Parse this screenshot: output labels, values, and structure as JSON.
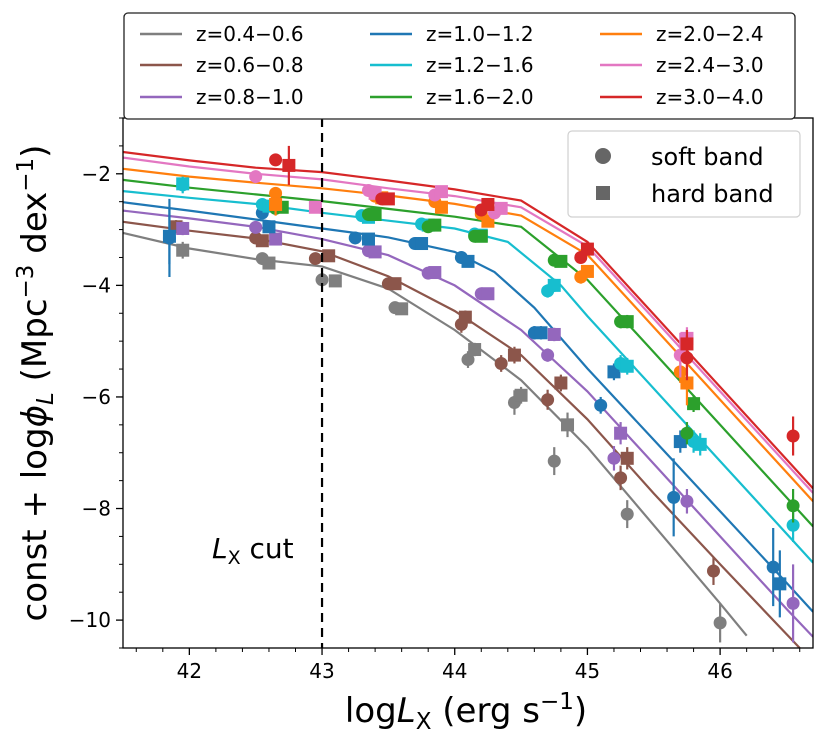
{
  "chart_data": {
    "type": "line+scatter",
    "xlabel_main": "log",
    "xlabel_sym": "L",
    "xlabel_sub": "X",
    "xlabel_units_pre": " (erg s",
    "xlabel_units_exp": "−1",
    "xlabel_units_post": ")",
    "ylabel_pre": "const + log",
    "ylabel_sym": "ϕ",
    "ylabel_sub": "L",
    "ylabel_units_pre": " (Mpc",
    "ylabel_units_exp1": "−3",
    "ylabel_units_mid": " dex",
    "ylabel_units_exp2": "−1",
    "ylabel_units_post": ")",
    "xlim": [
      41.5,
      46.7
    ],
    "ylim": [
      -10.5,
      -1.0
    ],
    "xticks": [
      42,
      43,
      44,
      45,
      46
    ],
    "xtick_labels": [
      "42",
      "43",
      "44",
      "45",
      "46"
    ],
    "yticks": [
      -10,
      -8,
      -6,
      -4,
      -2
    ],
    "ytick_labels": [
      "−10",
      "−8",
      "−6",
      "−4",
      "−2"
    ],
    "cut": {
      "x": 43,
      "label_sym": "L",
      "label_sub": "X",
      "label_text": " cut"
    },
    "legend_series_placement": "top, above axes",
    "legend_markers_placement": "top-right",
    "markers_legend": [
      {
        "label": "soft band",
        "marker": "circle"
      },
      {
        "label": "hard band",
        "marker": "square"
      }
    ],
    "series": [
      {
        "name": "z=0.4−0.6",
        "color": "#7f7f7f",
        "curve": [
          [
            41.5,
            -3.06
          ],
          [
            42.0,
            -3.34
          ],
          [
            42.5,
            -3.53
          ],
          [
            43.0,
            -3.66
          ],
          [
            43.5,
            -4.06
          ],
          [
            44.0,
            -4.8
          ],
          [
            44.5,
            -5.7
          ],
          [
            45.0,
            -6.9
          ],
          [
            45.5,
            -8.3
          ],
          [
            46.0,
            -9.7
          ],
          [
            46.2,
            -10.28
          ]
        ],
        "soft": [
          [
            42.55,
            -3.52,
            0.1
          ],
          [
            43.0,
            -3.9,
            0.1
          ],
          [
            43.55,
            -4.4,
            0.1
          ],
          [
            44.1,
            -5.33,
            0.15
          ],
          [
            44.45,
            -6.1,
            0.22
          ],
          [
            44.75,
            -7.15,
            0.25
          ],
          [
            45.3,
            -8.1,
            0.25
          ],
          [
            46.0,
            -10.05,
            0.35
          ]
        ],
        "hard": [
          [
            41.95,
            -3.37,
            0.15
          ],
          [
            42.6,
            -3.6,
            0.1
          ],
          [
            43.1,
            -3.92,
            0.1
          ],
          [
            43.6,
            -4.42,
            0.1
          ],
          [
            44.15,
            -5.15,
            0.12
          ],
          [
            44.5,
            -5.97,
            0.15
          ],
          [
            44.85,
            -6.5,
            0.22
          ]
        ]
      },
      {
        "name": "z=0.6−0.8",
        "color": "#8c564b",
        "curve": [
          [
            41.5,
            -2.86
          ],
          [
            42.0,
            -3.02
          ],
          [
            42.5,
            -3.16
          ],
          [
            43.0,
            -3.39
          ],
          [
            43.5,
            -3.84
          ],
          [
            44.0,
            -4.46
          ],
          [
            44.5,
            -5.25
          ],
          [
            45.0,
            -6.4
          ],
          [
            45.5,
            -7.73
          ],
          [
            46.0,
            -9.0
          ],
          [
            46.5,
            -10.25
          ],
          [
            46.6,
            -10.5
          ]
        ],
        "soft": [
          [
            42.5,
            -3.15,
            0.1
          ],
          [
            42.95,
            -3.52,
            0.1
          ],
          [
            43.5,
            -3.97,
            0.1
          ],
          [
            44.05,
            -4.7,
            0.15
          ],
          [
            44.35,
            -5.4,
            0.15
          ],
          [
            44.7,
            -6.05,
            0.18
          ],
          [
            45.25,
            -7.45,
            0.22
          ],
          [
            45.95,
            -9.12,
            0.25
          ]
        ],
        "hard": [
          [
            41.9,
            -2.95,
            0.12
          ],
          [
            42.55,
            -3.2,
            0.1
          ],
          [
            43.05,
            -3.47,
            0.1
          ],
          [
            43.55,
            -3.97,
            0.1
          ],
          [
            44.08,
            -4.57,
            0.12
          ],
          [
            44.45,
            -5.25,
            0.15
          ],
          [
            44.8,
            -5.75,
            0.15
          ],
          [
            45.3,
            -7.1,
            0.2
          ]
        ]
      },
      {
        "name": "z=0.8−1.0",
        "color": "#9467bd",
        "curve": [
          [
            41.5,
            -2.66
          ],
          [
            42.0,
            -2.8
          ],
          [
            42.5,
            -2.95
          ],
          [
            43.0,
            -3.17
          ],
          [
            43.5,
            -3.46
          ],
          [
            44.0,
            -4.0
          ],
          [
            44.5,
            -4.8
          ],
          [
            45.0,
            -5.9
          ],
          [
            45.5,
            -7.2
          ],
          [
            46.0,
            -8.5
          ],
          [
            46.5,
            -9.8
          ],
          [
            46.7,
            -10.3
          ]
        ],
        "soft": [
          [
            42.5,
            -2.96,
            0.1
          ],
          [
            43.35,
            -3.38,
            0.1
          ],
          [
            43.8,
            -3.78,
            0.1
          ],
          [
            44.2,
            -4.15,
            0.1
          ],
          [
            44.7,
            -5.25,
            0.12
          ],
          [
            45.2,
            -7.1,
            0.22
          ],
          [
            45.75,
            -7.87,
            0.22
          ],
          [
            46.55,
            -9.7,
            0.7
          ]
        ],
        "hard": [
          [
            41.95,
            -2.98,
            0.12
          ],
          [
            42.65,
            -3.17,
            0.1
          ],
          [
            43.4,
            -3.4,
            0.1
          ],
          [
            43.85,
            -3.77,
            0.1
          ],
          [
            44.25,
            -4.15,
            0.1
          ],
          [
            44.75,
            -4.88,
            0.12
          ],
          [
            45.25,
            -6.65,
            0.2
          ]
        ]
      },
      {
        "name": "z=1.0−1.2",
        "color": "#1f77b4",
        "curve": [
          [
            41.5,
            -2.51
          ],
          [
            42.0,
            -2.66
          ],
          [
            42.5,
            -2.82
          ],
          [
            43.0,
            -2.98
          ],
          [
            43.5,
            -3.14
          ],
          [
            44.0,
            -3.4
          ],
          [
            44.3,
            -3.76
          ],
          [
            44.6,
            -4.4
          ],
          [
            45.0,
            -5.49
          ],
          [
            45.5,
            -6.77
          ],
          [
            46.0,
            -8.05
          ],
          [
            46.5,
            -9.33
          ],
          [
            46.7,
            -9.85
          ]
        ],
        "soft": [
          [
            41.85,
            -3.15,
            0.7
          ],
          [
            42.55,
            -2.7,
            0.1
          ],
          [
            43.25,
            -3.15,
            0.1
          ],
          [
            43.7,
            -3.25,
            0.1
          ],
          [
            44.05,
            -3.5,
            0.1
          ],
          [
            44.6,
            -4.85,
            0.12
          ],
          [
            45.1,
            -6.15,
            0.15
          ],
          [
            45.65,
            -7.8,
            0.7
          ],
          [
            46.4,
            -9.05,
            0.7
          ]
        ],
        "hard": [
          [
            41.85,
            -3.12,
            0.5
          ],
          [
            42.6,
            -2.95,
            0.1
          ],
          [
            43.35,
            -3.17,
            0.1
          ],
          [
            43.75,
            -3.25,
            0.1
          ],
          [
            44.1,
            -3.57,
            0.1
          ],
          [
            44.65,
            -4.85,
            0.12
          ],
          [
            45.2,
            -5.55,
            0.15
          ],
          [
            45.7,
            -6.8,
            0.2
          ],
          [
            46.45,
            -9.35,
            0.6
          ]
        ]
      },
      {
        "name": "z=1.2−1.6",
        "color": "#17becf",
        "curve": [
          [
            41.5,
            -2.31
          ],
          [
            42.0,
            -2.43
          ],
          [
            42.5,
            -2.54
          ],
          [
            43.0,
            -2.7
          ],
          [
            43.5,
            -2.84
          ],
          [
            44.0,
            -2.98
          ],
          [
            44.4,
            -3.22
          ],
          [
            44.8,
            -4.0
          ],
          [
            45.0,
            -4.55
          ],
          [
            45.5,
            -5.85
          ],
          [
            46.0,
            -7.15
          ],
          [
            46.5,
            -8.45
          ],
          [
            46.7,
            -8.97
          ]
        ],
        "soft": [
          [
            41.95,
            -2.2,
            0.15
          ],
          [
            42.55,
            -2.55,
            0.1
          ],
          [
            43.3,
            -2.75,
            0.1
          ],
          [
            43.75,
            -2.9,
            0.1
          ],
          [
            44.15,
            -3.08,
            0.1
          ],
          [
            44.7,
            -4.1,
            0.12
          ],
          [
            45.25,
            -5.4,
            0.15
          ],
          [
            45.8,
            -6.8,
            0.2
          ],
          [
            46.55,
            -8.3,
            0.3
          ]
        ],
        "hard": [
          [
            41.95,
            -2.18,
            0.1
          ],
          [
            42.6,
            -2.58,
            0.1
          ],
          [
            43.35,
            -2.78,
            0.1
          ],
          [
            43.8,
            -2.92,
            0.1
          ],
          [
            44.2,
            -3.1,
            0.1
          ],
          [
            44.75,
            -4.0,
            0.12
          ],
          [
            45.3,
            -5.45,
            0.15
          ],
          [
            45.85,
            -6.85,
            0.2
          ]
        ]
      },
      {
        "name": "z=1.6−2.0",
        "color": "#2ca02c",
        "curve": [
          [
            41.5,
            -2.11
          ],
          [
            42.0,
            -2.25
          ],
          [
            42.5,
            -2.37
          ],
          [
            43.0,
            -2.49
          ],
          [
            43.5,
            -2.63
          ],
          [
            44.0,
            -2.77
          ],
          [
            44.5,
            -2.95
          ],
          [
            45.0,
            -3.9
          ],
          [
            45.5,
            -5.2
          ],
          [
            46.0,
            -6.5
          ],
          [
            46.5,
            -7.8
          ],
          [
            46.7,
            -8.32
          ]
        ],
        "soft": [
          [
            42.65,
            -2.62,
            0.1
          ],
          [
            43.35,
            -2.73,
            0.1
          ],
          [
            43.8,
            -2.95,
            0.1
          ],
          [
            44.15,
            -3.12,
            0.1
          ],
          [
            44.75,
            -3.55,
            0.1
          ],
          [
            45.25,
            -4.65,
            0.12
          ],
          [
            45.75,
            -6.65,
            0.2
          ],
          [
            46.55,
            -7.95,
            0.3
          ]
        ],
        "hard": [
          [
            42.7,
            -2.6,
            0.1
          ],
          [
            43.4,
            -2.73,
            0.1
          ],
          [
            43.85,
            -2.92,
            0.1
          ],
          [
            44.2,
            -3.12,
            0.1
          ],
          [
            44.8,
            -3.57,
            0.1
          ],
          [
            45.3,
            -4.65,
            0.12
          ],
          [
            45.8,
            -6.12,
            0.15
          ]
        ]
      },
      {
        "name": "z=2.0−2.4",
        "color": "#ff7f0e",
        "curve": [
          [
            41.5,
            -1.91
          ],
          [
            42.0,
            -2.05
          ],
          [
            42.5,
            -2.16
          ],
          [
            43.0,
            -2.26
          ],
          [
            43.5,
            -2.39
          ],
          [
            44.0,
            -2.54
          ],
          [
            44.5,
            -2.75
          ],
          [
            45.0,
            -3.45
          ],
          [
            45.5,
            -4.75
          ],
          [
            46.0,
            -6.05
          ],
          [
            46.5,
            -7.35
          ],
          [
            46.7,
            -7.87
          ]
        ],
        "soft": [
          [
            42.65,
            -2.35,
            0.1
          ],
          [
            43.4,
            -2.4,
            0.1
          ],
          [
            43.85,
            -2.5,
            0.1
          ],
          [
            44.2,
            -2.72,
            0.1
          ],
          [
            44.95,
            -3.85,
            0.12
          ],
          [
            45.7,
            -5.55,
            0.2
          ]
        ],
        "hard": [
          [
            42.65,
            -2.55,
            0.2
          ],
          [
            43.45,
            -2.43,
            0.1
          ],
          [
            43.9,
            -2.6,
            0.1
          ],
          [
            44.25,
            -2.85,
            0.1
          ],
          [
            45.0,
            -3.75,
            0.1
          ],
          [
            45.75,
            -5.75,
            0.4
          ]
        ]
      },
      {
        "name": "z=2.4−3.0",
        "color": "#e377c2",
        "curve": [
          [
            41.5,
            -1.71
          ],
          [
            42.0,
            -1.87
          ],
          [
            42.5,
            -2.0
          ],
          [
            43.0,
            -2.1
          ],
          [
            43.5,
            -2.26
          ],
          [
            44.0,
            -2.4
          ],
          [
            44.5,
            -2.6
          ],
          [
            45.0,
            -3.3
          ],
          [
            45.5,
            -4.6
          ],
          [
            46.0,
            -5.9
          ],
          [
            46.5,
            -7.2
          ],
          [
            46.7,
            -7.72
          ]
        ],
        "soft": [
          [
            42.5,
            -2.05,
            0.1
          ],
          [
            43.35,
            -2.3,
            0.1
          ],
          [
            43.85,
            -2.38,
            0.1
          ],
          [
            44.3,
            -2.7,
            0.1
          ],
          [
            45.7,
            -5.25,
            0.4
          ]
        ],
        "hard": [
          [
            42.95,
            -2.6,
            0.1
          ],
          [
            43.4,
            -2.35,
            0.1
          ],
          [
            43.9,
            -2.32,
            0.1
          ],
          [
            44.35,
            -2.62,
            0.1
          ],
          [
            45.75,
            -4.95,
            0.2
          ]
        ]
      },
      {
        "name": "z=3.0−4.0",
        "color": "#d62728",
        "curve": [
          [
            41.5,
            -1.61
          ],
          [
            42.0,
            -1.76
          ],
          [
            42.5,
            -1.89
          ],
          [
            43.0,
            -1.97
          ],
          [
            43.5,
            -2.12
          ],
          [
            44.0,
            -2.28
          ],
          [
            44.5,
            -2.48
          ],
          [
            45.0,
            -3.22
          ],
          [
            45.5,
            -4.52
          ],
          [
            46.0,
            -5.82
          ],
          [
            46.5,
            -7.12
          ],
          [
            46.7,
            -7.64
          ]
        ],
        "soft": [
          [
            42.65,
            -1.75,
            0.1
          ],
          [
            43.45,
            -2.45,
            0.1
          ],
          [
            44.2,
            -2.65,
            0.1
          ],
          [
            44.95,
            -3.5,
            0.1
          ],
          [
            45.75,
            -5.3,
            0.4
          ],
          [
            46.55,
            -6.7,
            0.35
          ]
        ],
        "hard": [
          [
            42.75,
            -1.85,
            0.35
          ],
          [
            43.5,
            -2.45,
            0.1
          ],
          [
            44.25,
            -2.55,
            0.1
          ],
          [
            45.0,
            -3.35,
            0.1
          ],
          [
            45.75,
            -5.05,
            0.25
          ]
        ]
      }
    ]
  }
}
